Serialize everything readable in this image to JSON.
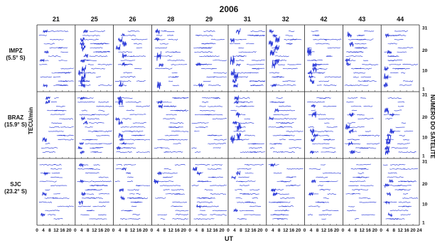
{
  "chart_data": {
    "type": "scatter",
    "title": "2006",
    "xlabel": "UT",
    "ylabel_left": "TECU/min",
    "ylabel_right": "NÚMERO DO SATÉLITE",
    "grid": true,
    "columns": [
      "21",
      "25",
      "26",
      "28",
      "29",
      "31",
      "32",
      "42",
      "43",
      "44"
    ],
    "rows": [
      {
        "station": "IMPZ",
        "lat": "(5.5° S)"
      },
      {
        "station": "BRAZ",
        "lat": "(15.9° S)"
      },
      {
        "station": "SJC",
        "lat": "(23.2° S)"
      }
    ],
    "x_ticks": [
      "0",
      "4",
      "8",
      "12",
      "16",
      "20"
    ],
    "x_last_tick": "24",
    "x_range": [
      0,
      24
    ],
    "y_ticks": [
      "31",
      "20",
      "10",
      "1"
    ],
    "y_range": [
      1,
      31
    ],
    "activity_level": [
      [
        0.55,
        0.75,
        0.85,
        0.9,
        0.35,
        0.9,
        0.7,
        0.8,
        0.6,
        0.65
      ],
      [
        0.45,
        0.6,
        0.7,
        0.8,
        0.05,
        0.95,
        0.55,
        0.75,
        0.6,
        0.7
      ],
      [
        0.2,
        0.25,
        0.25,
        0.3,
        0.25,
        0.25,
        0.2,
        0.25,
        0.2,
        0.2
      ]
    ],
    "series_color": "#1f2fd6"
  }
}
